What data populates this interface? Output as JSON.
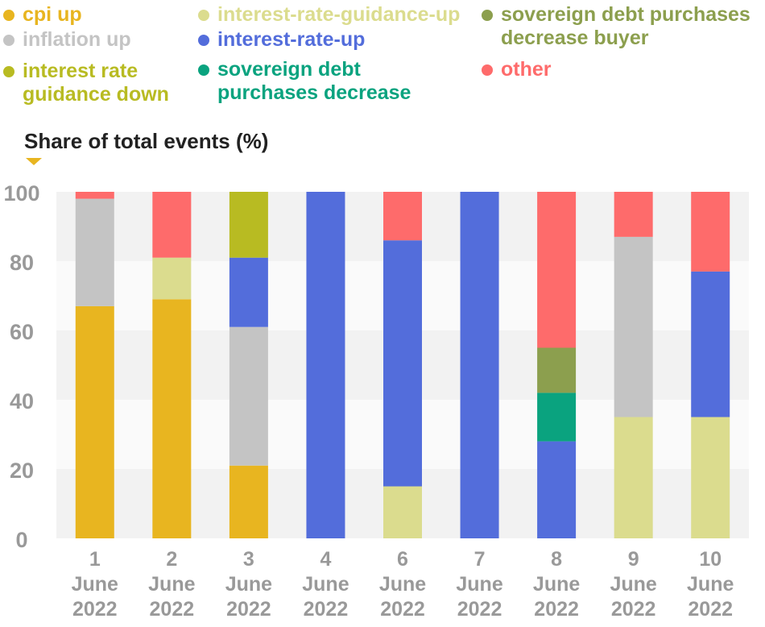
{
  "chart_data": {
    "type": "bar",
    "stacked": true,
    "ylabel": "Share of total events (%)",
    "ylim": [
      0,
      100
    ],
    "yticks": [
      0,
      20,
      40,
      60,
      80,
      100
    ],
    "categories": [
      "1\nJune\n2022",
      "2\nJune\n2022",
      "3\nJune\n2022",
      "4\nJune\n2022",
      "6\nJune\n2022",
      "7\nJune\n2022",
      "8\nJune\n2022",
      "9\nJune\n2022",
      "10\nJune\n2022"
    ],
    "legend_placement": "top",
    "series": [
      {
        "name": "cpi up",
        "color": "#e8b520",
        "values": [
          67,
          69,
          21,
          0,
          0,
          0,
          0,
          0,
          0
        ]
      },
      {
        "name": "interest-rate-guidance-up",
        "color": "#dbdc8e",
        "values": [
          0,
          12,
          0,
          0,
          15,
          0,
          0,
          35,
          35
        ]
      },
      {
        "name": "inflation up",
        "color": "#c4c4c4",
        "values": [
          31,
          0,
          40,
          0,
          0,
          0,
          0,
          52,
          0
        ]
      },
      {
        "name": "interest-rate-up",
        "color": "#536ddb",
        "values": [
          0,
          0,
          20,
          100,
          71,
          100,
          28,
          0,
          42
        ]
      },
      {
        "name": "interest rate\nguidance down",
        "color": "#b8bb22",
        "values": [
          0,
          0,
          19,
          0,
          0,
          0,
          0,
          0,
          0
        ]
      },
      {
        "name": "sovereign debt\npurchases decrease",
        "color": "#0aa37f",
        "values": [
          0,
          0,
          0,
          0,
          0,
          0,
          14,
          0,
          0
        ]
      },
      {
        "name": "sovereign debt purchases\ndecrease buyer",
        "color": "#8c9f4e",
        "values": [
          0,
          0,
          0,
          0,
          0,
          0,
          13,
          0,
          0
        ]
      },
      {
        "name": "other",
        "color": "#fe6b6b",
        "values": [
          2,
          19,
          0,
          0,
          14,
          0,
          45,
          13,
          23
        ]
      }
    ],
    "stack_order": [
      "cpi up",
      "interest-rate-guidance-up",
      "inflation up",
      "interest-rate-up",
      "interest rate\nguidance down",
      "sovereign debt\npurchases decrease",
      "sovereign debt purchases\ndecrease buyer",
      "other"
    ]
  }
}
